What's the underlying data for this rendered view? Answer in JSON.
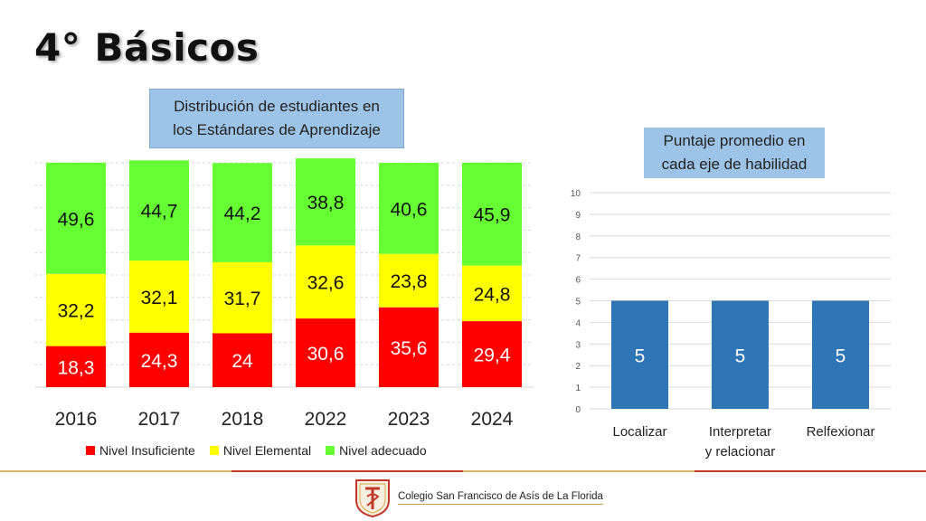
{
  "header": {
    "title": "4° Básicos"
  },
  "footer": {
    "institution": "Colegio San Francisco de Asís de La Florida"
  },
  "chart_data": [
    {
      "type": "bar",
      "stacked": true,
      "title": "Distribución de estudiantes en\nlos Estándares de Aprendizaje",
      "categories": [
        "2016",
        "2017",
        "2018",
        "2022",
        "2023",
        "2024"
      ],
      "series": [
        {
          "name": "Nivel Insuficiente",
          "color": "#ff0000",
          "values": [
            18.3,
            24.3,
            24,
            30.6,
            35.6,
            29.4
          ],
          "labels": [
            "18,3",
            "24,3",
            "24",
            "30,6",
            "35,6",
            "29,4"
          ]
        },
        {
          "name": "Nivel Elemental",
          "color": "#ffff00",
          "values": [
            32.2,
            32.1,
            31.7,
            32.6,
            23.8,
            24.8
          ],
          "labels": [
            "32,2",
            "32,1",
            "31,7",
            "32,6",
            "23,8",
            "24,8"
          ]
        },
        {
          "name": "Nivel adecuado",
          "color": "#66ff33",
          "values": [
            49.6,
            44.7,
            44.2,
            38.8,
            40.6,
            45.9
          ],
          "labels": [
            "49,6",
            "44,7",
            "44,2",
            "38,8",
            "40,6",
            "45,9"
          ]
        }
      ],
      "ylim": [
        0,
        100
      ],
      "grid": true,
      "legend": "bottom"
    },
    {
      "type": "bar",
      "title": "Puntaje promedio en\ncada eje de habilidad",
      "categories": [
        "Localizar",
        "Interpretar\ny relacionar",
        "Relfexionar"
      ],
      "values": [
        5,
        5,
        5
      ],
      "labels": [
        "5",
        "5",
        "5"
      ],
      "color": "#2e75b6",
      "ylim": [
        0,
        10
      ],
      "yticks": [
        "0",
        "1",
        "2",
        "3",
        "4",
        "5",
        "6",
        "7",
        "8",
        "9",
        "10"
      ],
      "grid": true
    }
  ]
}
